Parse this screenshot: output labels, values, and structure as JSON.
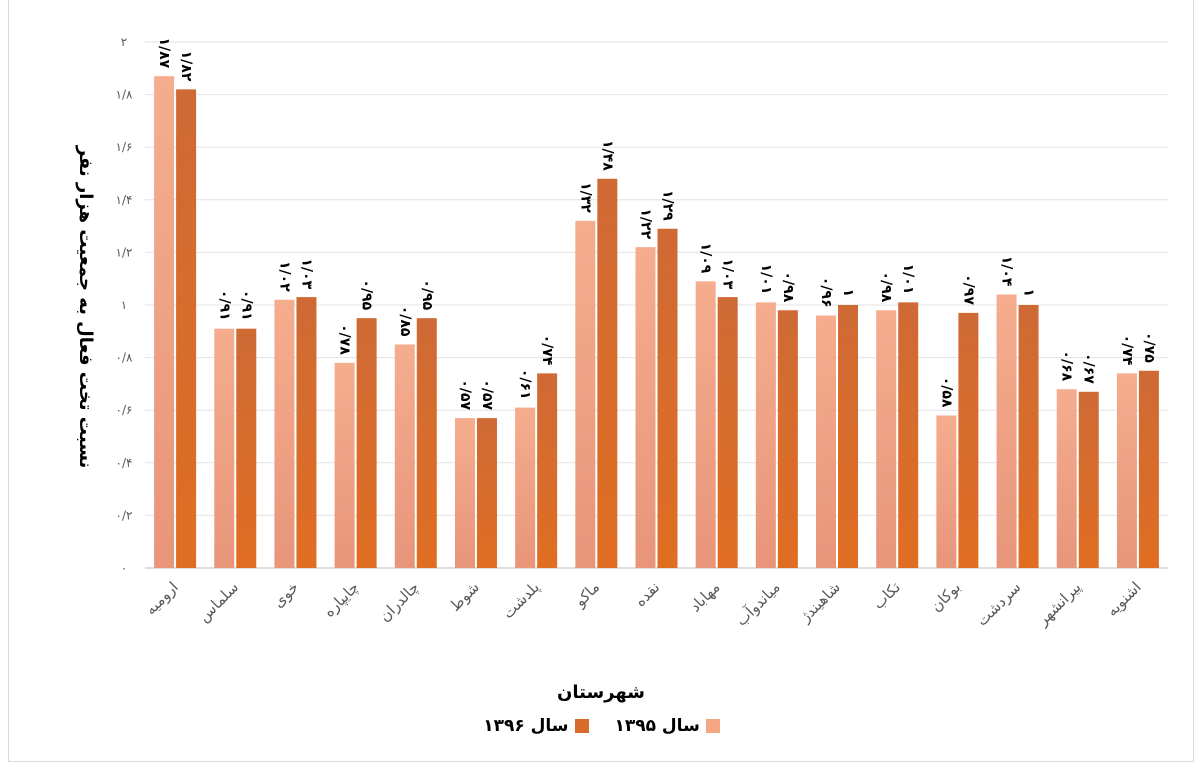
{
  "chart_data": {
    "type": "bar",
    "title": "",
    "xlabel": "شهرستان",
    "ylabel": "نسبت تخت فعال به جمعیت هزار نفر",
    "ylim": [
      0,
      2
    ],
    "yticks": [
      "۰",
      "۰/۲",
      "۰/۴",
      "۰/۶",
      "۰/۸",
      "۱",
      "۱/۲",
      "۱/۴",
      "۱/۶",
      "۱/۸",
      "۲"
    ],
    "categories": [
      "ارومیه",
      "سلماس",
      "خوی",
      "چایپاره",
      "چالدران",
      "شوط",
      "پلدشت",
      "ماکو",
      "نقده",
      "مهاباد",
      "میاندوآب",
      "شاهیندژ",
      "تکاب",
      "بوکان",
      "سردشت",
      "پیرانشهر",
      "اشنویه"
    ],
    "series": [
      {
        "name": "سال ۱۳۹۵",
        "color": "#f4a582",
        "values": [
          1.87,
          0.91,
          1.02,
          0.78,
          0.85,
          0.57,
          0.61,
          1.32,
          1.22,
          1.09,
          1.01,
          0.96,
          0.98,
          0.58,
          1.04,
          0.68,
          0.74
        ],
        "labels": [
          "۱/۸۷",
          "۰/۹۱",
          "۱/۰۲",
          "۰/۷۸",
          "۰/۸۵",
          "۰/۵۷",
          "۰/۶۱",
          "۱/۳۲",
          "۱/۲۲",
          "۱/۰۹",
          "۱/۰۱",
          "۰/۹۶",
          "۰/۹۸",
          "۰/۵۸",
          "۱/۰۴",
          "۰/۶۸",
          "۰/۷۴"
        ]
      },
      {
        "name": "سال ۱۳۹۶",
        "color": "#d86a2a",
        "values": [
          1.82,
          0.91,
          1.03,
          0.95,
          0.95,
          0.57,
          0.74,
          1.48,
          1.29,
          1.03,
          0.98,
          1,
          1.01,
          0.97,
          1,
          0.67,
          0.75
        ],
        "labels": [
          "۱/۸۲",
          "۰/۹۱",
          "۱/۰۳",
          "۰/۹۵",
          "۰/۹۵",
          "۰/۵۷",
          "۰/۷۴",
          "۱/۴۸",
          "۱/۲۹",
          "۱/۰۳",
          "۰/۹۸",
          "۱",
          "۱/۰۱",
          "۰/۹۷",
          "۱",
          "۰/۶۷",
          "۰/۷۵"
        ]
      }
    ],
    "grid": true,
    "legend": "bottom"
  },
  "legend": {
    "series1": "سال ۱۳۹۵",
    "series2": "سال ۱۳۹۶"
  }
}
